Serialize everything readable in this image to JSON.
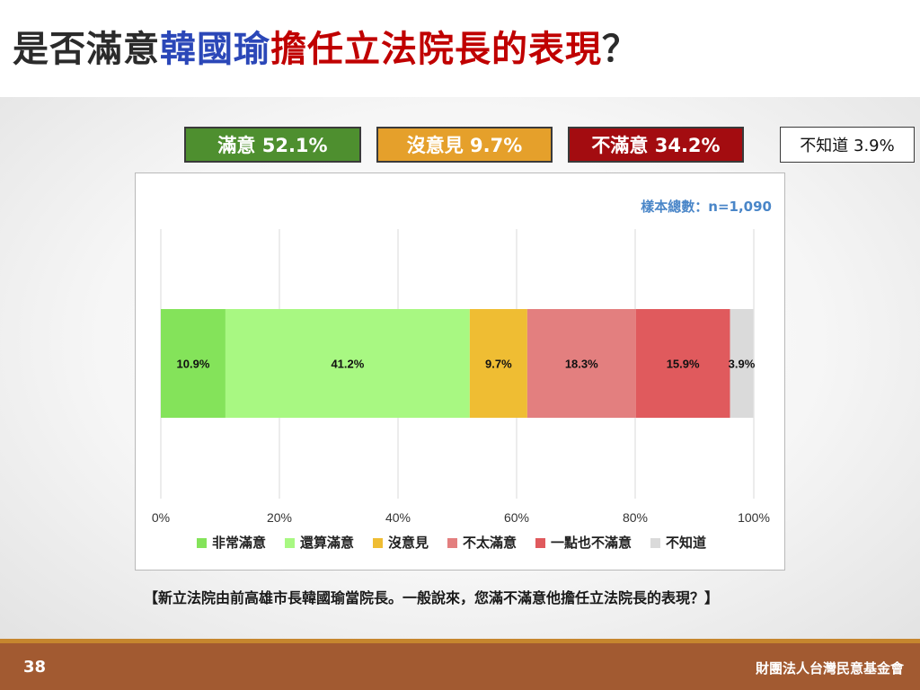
{
  "header": {
    "title_part1": "是否滿意",
    "title_part2": "韓國瑜",
    "title_part3": "擔任立法院長的表現",
    "title_part4": "？"
  },
  "summary": {
    "satisfied": "滿意 52.1%",
    "neutral": "沒意見 9.7%",
    "dissatisfied": "不滿意 34.2%",
    "unknown": "不知道 3.9%"
  },
  "colors": {
    "title_blue": "#2b47b8",
    "title_red": "#c00000",
    "satisfied_box": "#4e8f2f",
    "neutral_box": "#e5a02b",
    "dissatisfied_box": "#a30c10",
    "footer": "#a25a31"
  },
  "chart_data": {
    "type": "bar",
    "orientation": "horizontal-stacked",
    "series": [
      {
        "name": "非常滿意",
        "value": 10.9,
        "label": "10.9%",
        "color": "#84e35a"
      },
      {
        "name": "還算滿意",
        "value": 41.2,
        "label": "41.2%",
        "color": "#a8f882"
      },
      {
        "name": "沒意見",
        "value": 9.7,
        "label": "9.7%",
        "color": "#efbd33"
      },
      {
        "name": "不太滿意",
        "value": 18.3,
        "label": "18.3%",
        "color": "#e37f7f"
      },
      {
        "name": "一點也不滿意",
        "value": 15.9,
        "label": "15.9%",
        "color": "#e05a5d"
      },
      {
        "name": "不知道",
        "value": 3.9,
        "label": "3.9%",
        "color": "#dadada"
      }
    ],
    "xlim": [
      0,
      100
    ],
    "xticks": [
      "0%",
      "20%",
      "40%",
      "60%",
      "80%",
      "100%"
    ],
    "grid": true,
    "legend_position": "bottom",
    "sample_size": "樣本總數：n=1,090"
  },
  "question": "【新立法院由前高雄市長韓國瑜當院長。一般說來，您滿不滿意他擔任立法院長的表現？】",
  "footer": {
    "page": "38",
    "org": "財團法人台灣民意基金會"
  }
}
